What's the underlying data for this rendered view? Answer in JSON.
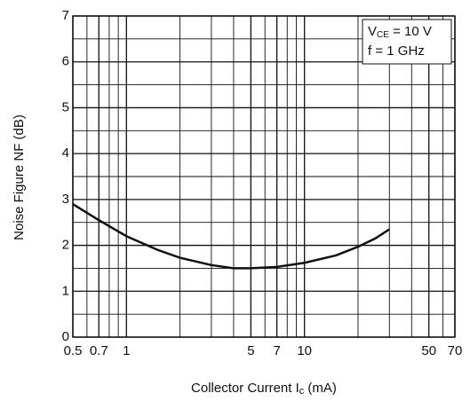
{
  "chart_data": {
    "type": "line",
    "xscale": "log",
    "xlabel": [
      "Collector Current  I",
      "c",
      " (mA)"
    ],
    "ylabel": "Noise Figure  NF (dB)",
    "annotation": [
      [
        "V",
        "CE",
        " = 10 V"
      ],
      [
        "f = 1 GHz"
      ]
    ],
    "x": [
      0.5,
      0.7,
      1,
      1.5,
      2,
      3,
      4,
      5,
      7,
      10,
      15,
      20,
      25,
      30
    ],
    "series": [
      {
        "name": "NF",
        "color": "#111111",
        "values": [
          2.9,
          2.55,
          2.2,
          1.9,
          1.73,
          1.57,
          1.5,
          1.5,
          1.53,
          1.62,
          1.78,
          1.97,
          2.15,
          2.35
        ]
      }
    ],
    "xlim": [
      0.5,
      70
    ],
    "xticks": [
      0.5,
      0.7,
      1,
      5,
      7,
      10,
      50,
      70
    ],
    "xminor": [
      0.6,
      0.8,
      0.9,
      2,
      3,
      4,
      6,
      8,
      9,
      20,
      30,
      40,
      60
    ],
    "ylim": [
      0,
      7
    ],
    "yticks": [
      0,
      1,
      2,
      3,
      4,
      5,
      6,
      7
    ],
    "yminor": [
      0.5,
      1.5,
      2.5,
      3.5,
      4.5,
      5.5,
      6.5
    ],
    "grid": true
  }
}
